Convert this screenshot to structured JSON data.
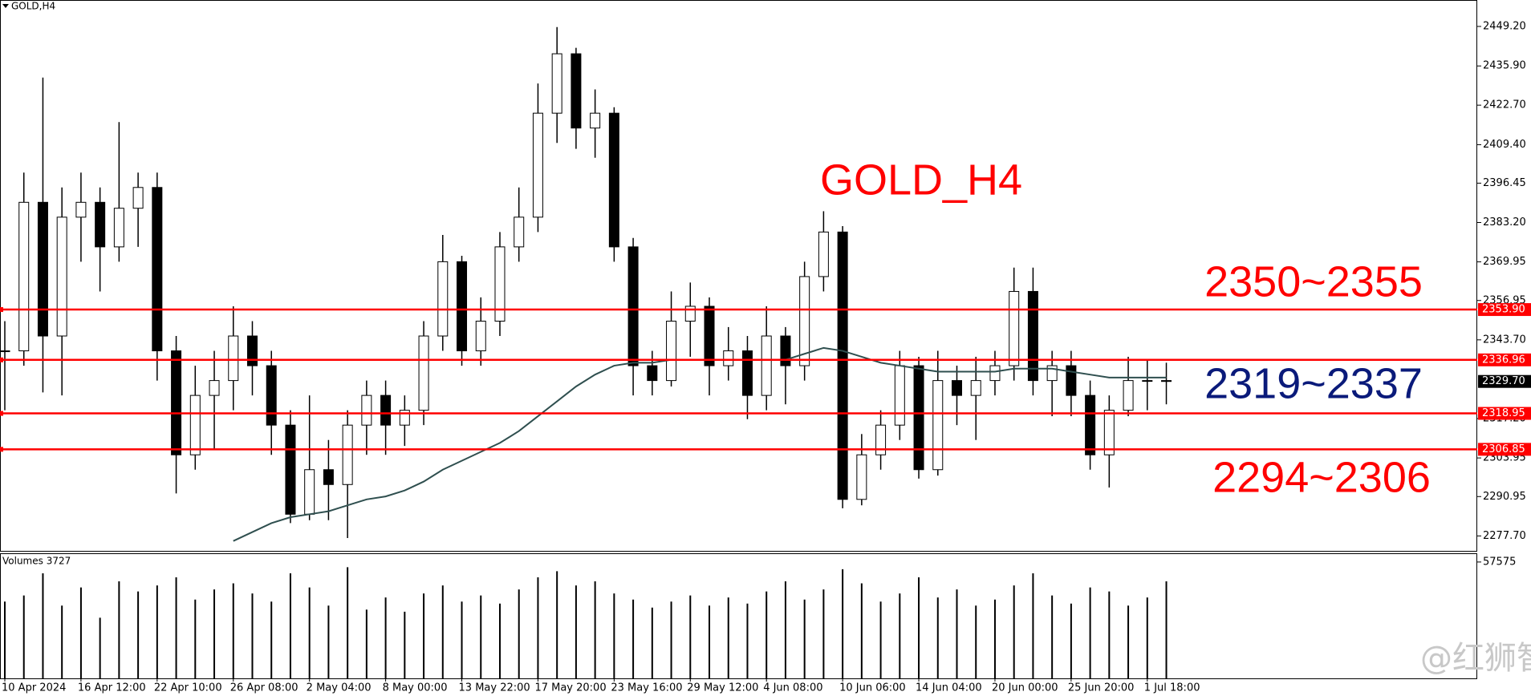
{
  "chart_data": {
    "type": "candlestick",
    "title": "GOLD,H4",
    "categories": [
      "10 Apr 2024",
      null,
      null,
      null,
      "16 Apr 12:00",
      null,
      null,
      null,
      "22 Apr 10:00",
      null,
      null,
      null,
      "26 Apr 08:00",
      null,
      null,
      null,
      "2 May 04:00",
      null,
      null,
      null,
      "8 May 00:00",
      null,
      null,
      null,
      "13 May 22:00",
      null,
      null,
      null,
      "17 May 20:00",
      null,
      null,
      null,
      "23 May 16:00",
      null,
      null,
      null,
      "29 May 12:00",
      null,
      null,
      null,
      "4 Jun 08:00",
      null,
      null,
      null,
      "10 Jun 06:00",
      null,
      null,
      null,
      "14 Jun 04:00",
      null,
      null,
      null,
      "20 Jun 00:00",
      null,
      null,
      null,
      "25 Jun 20:00",
      null,
      null,
      null,
      "1 Jul 18:00",
      null
    ],
    "open": [
      2340,
      2340,
      2390,
      2345,
      2385,
      2390,
      2375,
      2388,
      2395,
      2340,
      2305,
      2325,
      2330,
      2345,
      2335,
      2315,
      2285,
      2300,
      2295,
      2315,
      2325,
      2315,
      2320,
      2345,
      2370,
      2340,
      2350,
      2375,
      2385,
      2420,
      2440,
      2415,
      2420,
      2375,
      2335,
      2330,
      2350,
      2355,
      2335,
      2340,
      2325,
      2345,
      2335,
      2365,
      2380,
      2290,
      2305,
      2315,
      2335,
      2300,
      2330,
      2325,
      2330,
      2335,
      2360,
      2330,
      2335,
      2325,
      2305,
      2320,
      2330,
      2330
    ],
    "high": [
      2350,
      2400,
      2432,
      2395,
      2400,
      2395,
      2417,
      2400,
      2400,
      2345,
      2335,
      2340,
      2355,
      2350,
      2340,
      2320,
      2325,
      2310,
      2320,
      2330,
      2330,
      2325,
      2350,
      2379,
      2372,
      2358,
      2380,
      2395,
      2430,
      2449,
      2442,
      2428,
      2422,
      2378,
      2340,
      2360,
      2363,
      2358,
      2348,
      2345,
      2355,
      2348,
      2370,
      2387,
      2382,
      2312,
      2320,
      2340,
      2338,
      2340,
      2335,
      2338,
      2340,
      2368,
      2368,
      2340,
      2340,
      2330,
      2325,
      2338,
      2337,
      2336
    ],
    "low": [
      2320,
      2335,
      2326,
      2325,
      2370,
      2360,
      2370,
      2375,
      2330,
      2292,
      2300,
      2307,
      2320,
      2325,
      2305,
      2282,
      2283,
      2283,
      2277,
      2305,
      2305,
      2308,
      2315,
      2340,
      2335,
      2335,
      2345,
      2370,
      2380,
      2410,
      2408,
      2405,
      2370,
      2325,
      2325,
      2328,
      2338,
      2325,
      2330,
      2317,
      2320,
      2322,
      2330,
      2360,
      2287,
      2288,
      2300,
      2310,
      2297,
      2298,
      2315,
      2310,
      2325,
      2330,
      2325,
      2318,
      2318,
      2300,
      2294,
      2318,
      2320,
      2322
    ],
    "close": [
      2340,
      2390,
      2345,
      2385,
      2390,
      2375,
      2388,
      2395,
      2340,
      2305,
      2325,
      2330,
      2345,
      2335,
      2315,
      2285,
      2300,
      2295,
      2315,
      2325,
      2315,
      2320,
      2345,
      2370,
      2340,
      2350,
      2375,
      2385,
      2420,
      2440,
      2415,
      2420,
      2375,
      2335,
      2330,
      2350,
      2355,
      2335,
      2340,
      2325,
      2345,
      2335,
      2365,
      2380,
      2290,
      2305,
      2315,
      2335,
      2300,
      2330,
      2325,
      2330,
      2335,
      2360,
      2330,
      2335,
      2325,
      2305,
      2320,
      2330,
      2330,
      2329.7
    ],
    "up_color": "#ffffff",
    "down_color": "#000000",
    "ylim": [
      2272.4,
      2458.1
    ],
    "yticks": [
      {
        "value": 2449.2,
        "label": "2449.20"
      },
      {
        "value": 2435.9,
        "label": "2435.90"
      },
      {
        "value": 2422.7,
        "label": "2422.70"
      },
      {
        "value": 2409.4,
        "label": "2409.40"
      },
      {
        "value": 2396.45,
        "label": "2396.45"
      },
      {
        "value": 2383.2,
        "label": "2383.20"
      },
      {
        "value": 2369.95,
        "label": "2369.95"
      },
      {
        "value": 2356.95,
        "label": "2356.95"
      },
      {
        "value": 2343.7,
        "label": "2343.70"
      },
      {
        "value": 2317.2,
        "label": "2317.20"
      },
      {
        "value": 2303.95,
        "label": "2303.95"
      },
      {
        "value": 2290.95,
        "label": "2290.95"
      },
      {
        "value": 2277.7,
        "label": "2277.70"
      }
    ],
    "moving_average": {
      "color": "#2f4f4f",
      "values": [
        null,
        null,
        null,
        null,
        null,
        null,
        null,
        null,
        null,
        null,
        null,
        null,
        2276,
        2279,
        2282,
        2284,
        2285,
        2286,
        2288,
        2290,
        2291,
        2293,
        2296,
        2300,
        2303,
        2306,
        2309,
        2313,
        2318,
        2323,
        2328,
        2332,
        2335,
        2336,
        2336,
        2337,
        2337,
        2337,
        2337,
        2337,
        2337,
        2337,
        2339,
        2341,
        2340,
        2338,
        2336,
        2335,
        2334,
        2333,
        2333,
        2333,
        2333,
        2334,
        2334,
        2334,
        2333,
        2332,
        2331,
        2331,
        2331,
        2331
      ]
    },
    "levels": {
      "color": "#ff0000",
      "lines": [
        {
          "value": 2353.9,
          "label": "2353.90"
        },
        {
          "value": 2336.96,
          "label": "2336.96"
        },
        {
          "value": 2318.95,
          "label": "2318.95"
        },
        {
          "value": 2306.85,
          "label": "2306.85"
        }
      ]
    },
    "current_price": {
      "value": 2329.7,
      "label": "2329.70"
    },
    "annotations": [
      {
        "text": "GOLD_H4",
        "color": "#ff0000"
      },
      {
        "text": "2350~2355",
        "color": "#ff0000"
      },
      {
        "text": "2319~2337",
        "color": "#0a1a7a"
      },
      {
        "text": "2294~2306",
        "color": "#ff0000"
      }
    ],
    "volume": {
      "title": "Volumes 3727",
      "ylim": [
        0,
        61500
      ],
      "yticks": [
        57575
      ],
      "values": [
        38000,
        41000,
        52000,
        36000,
        45000,
        30000,
        48000,
        43000,
        46000,
        50000,
        39000,
        44000,
        47000,
        42000,
        38000,
        52000,
        45000,
        36000,
        55000,
        34000,
        40000,
        33000,
        42000,
        46000,
        38000,
        41000,
        37000,
        44000,
        50000,
        53000,
        46000,
        48000,
        42000,
        39000,
        35000,
        38000,
        41000,
        36000,
        40000,
        37000,
        43000,
        48000,
        39000,
        44000,
        54000,
        47000,
        38000,
        42000,
        50000,
        40000,
        44000,
        36000,
        39000,
        46000,
        52000,
        41000,
        37000,
        45000,
        43000,
        36000,
        40000,
        48000
      ]
    },
    "watermark": "@红狮智富"
  }
}
